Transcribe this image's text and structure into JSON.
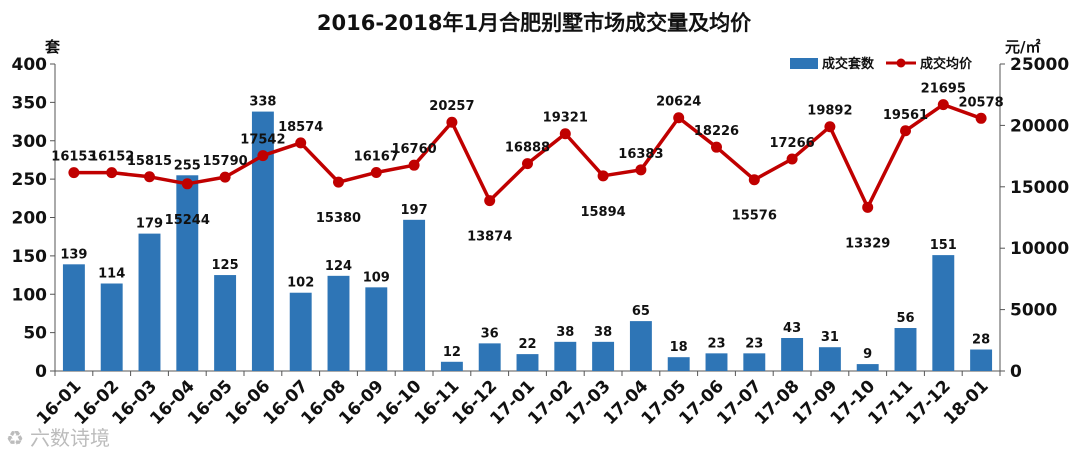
{
  "chart_data": {
    "type": "bar+line",
    "title": "2016-2018年1月合肥别墅市场成交量及均价",
    "categories": [
      "16-01",
      "16-02",
      "16-03",
      "16-04",
      "16-05",
      "16-06",
      "16-07",
      "16-08",
      "16-09",
      "16-10",
      "16-11",
      "16-12",
      "17-01",
      "17-02",
      "17-03",
      "17-04",
      "17-05",
      "17-06",
      "17-07",
      "17-08",
      "17-09",
      "17-10",
      "17-11",
      "17-12",
      "18-01"
    ],
    "series": [
      {
        "name": "成交套数",
        "type": "bar",
        "axis": "left",
        "color": "#2e75b6",
        "values": [
          139,
          114,
          179,
          255,
          125,
          338,
          102,
          124,
          109,
          197,
          12,
          36,
          22,
          38,
          38,
          65,
          18,
          23,
          23,
          43,
          31,
          9,
          56,
          151,
          28
        ]
      },
      {
        "name": "成交均价",
        "type": "line",
        "axis": "right",
        "color": "#c00000",
        "values": [
          16153,
          16152,
          15815,
          15244,
          15790,
          17542,
          18574,
          15380,
          16167,
          16760,
          20257,
          13874,
          16888,
          19321,
          15894,
          16383,
          20624,
          18226,
          15576,
          17266,
          19892,
          13329,
          19561,
          21695,
          20578
        ]
      }
    ],
    "y_left": {
      "label": "套",
      "min": 0,
      "max": 400,
      "ticks": [
        0,
        50,
        100,
        150,
        200,
        250,
        300,
        350,
        400
      ]
    },
    "y_right": {
      "label": "元/㎡",
      "min": 0,
      "max": 25000,
      "ticks": [
        0,
        5000,
        10000,
        15000,
        20000,
        25000
      ]
    },
    "legend_position": "top-right",
    "grid": false
  },
  "watermark": {
    "text": "六数诗境"
  }
}
